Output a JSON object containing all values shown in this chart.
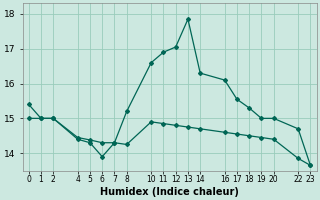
{
  "xlabel": "Humidex (Indice chaleur)",
  "bg_color": "#cce8e0",
  "grid_color": "#99ccbb",
  "line_color": "#006655",
  "xlim": [
    -0.5,
    23.5
  ],
  "ylim": [
    13.5,
    18.3
  ],
  "yticks": [
    14,
    15,
    16,
    17,
    18
  ],
  "xticks": [
    0,
    1,
    2,
    4,
    5,
    6,
    7,
    8,
    10,
    11,
    12,
    13,
    14,
    16,
    17,
    18,
    19,
    20,
    22,
    23
  ],
  "xtick_labels": [
    "0",
    "1",
    "2",
    "4",
    "5",
    "6",
    "7",
    "8",
    "10",
    "11",
    "12",
    "13",
    "14",
    "16",
    "17",
    "18",
    "19",
    "20",
    "22",
    "23"
  ],
  "line1_x": [
    0,
    1,
    2,
    4,
    5,
    6,
    7,
    8,
    10,
    11,
    12,
    13,
    14,
    16,
    17,
    18,
    19,
    20,
    22,
    23
  ],
  "line1_y": [
    15.4,
    15.0,
    15.0,
    14.4,
    14.3,
    13.9,
    14.3,
    15.2,
    16.6,
    16.9,
    17.05,
    17.85,
    16.3,
    16.1,
    15.55,
    15.3,
    15.0,
    15.0,
    14.7,
    13.65
  ],
  "line2_x": [
    0,
    1,
    2,
    4,
    5,
    6,
    7,
    8,
    10,
    11,
    12,
    13,
    14,
    16,
    17,
    18,
    19,
    20,
    22,
    23
  ],
  "line2_y": [
    15.0,
    15.0,
    15.0,
    14.45,
    14.38,
    14.3,
    14.3,
    14.25,
    14.9,
    14.85,
    14.8,
    14.75,
    14.7,
    14.6,
    14.55,
    14.5,
    14.45,
    14.4,
    13.85,
    13.65
  ],
  "xlabel_fontsize": 7,
  "tick_fontsize": 5.5,
  "ytick_fontsize": 6.5
}
